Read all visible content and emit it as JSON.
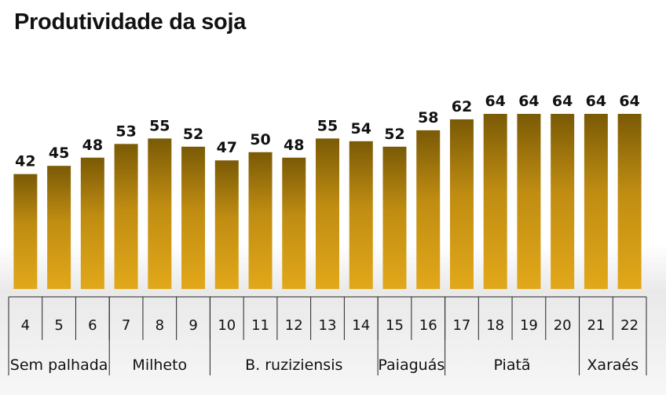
{
  "chart_data": {
    "type": "bar",
    "title": "Produtividade da soja",
    "categories": [
      "4",
      "5",
      "6",
      "7",
      "8",
      "9",
      "10",
      "11",
      "12",
      "13",
      "14",
      "15",
      "16",
      "17",
      "18",
      "19",
      "20",
      "21",
      "22"
    ],
    "values": [
      42,
      45,
      48,
      53,
      55,
      52,
      47,
      50,
      48,
      55,
      54,
      52,
      58,
      62,
      64,
      64,
      64,
      64,
      64
    ],
    "groups": [
      {
        "label": "Sem palhada",
        "start": 0,
        "end": 2
      },
      {
        "label": "Milheto",
        "start": 3,
        "end": 5
      },
      {
        "label": "B. ruziziensis",
        "start": 6,
        "end": 10
      },
      {
        "label": "Paiaguás",
        "start": 11,
        "end": 12
      },
      {
        "label": "Piatã",
        "start": 13,
        "end": 16
      },
      {
        "label": "Xaraés",
        "start": 17,
        "end": 18
      }
    ],
    "ylim": [
      0,
      64
    ],
    "xlabel": "",
    "ylabel": "",
    "colors": {
      "bar_top": "#7a5a06",
      "bar_mid": "#c08d12",
      "bar_bottom": "#e2a81a"
    }
  }
}
